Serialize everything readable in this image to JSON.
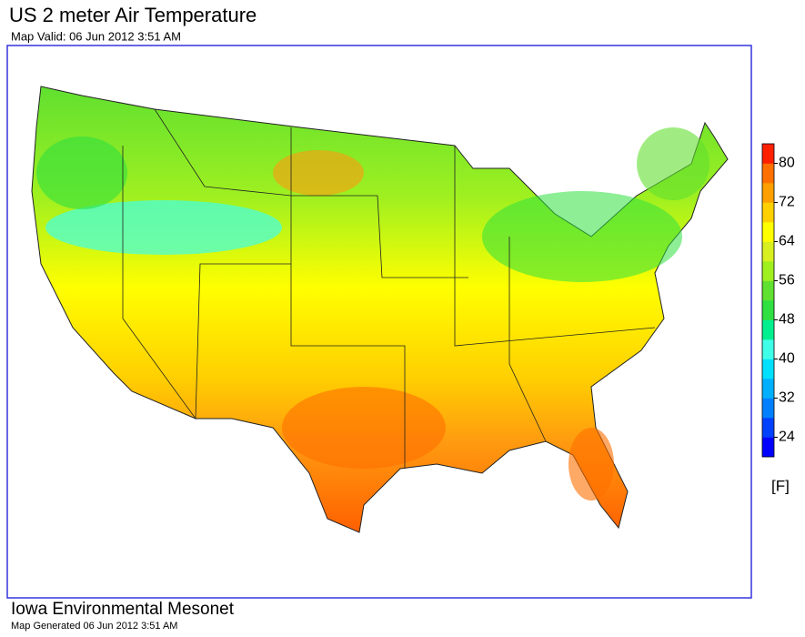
{
  "header": {
    "title": "US 2 meter Air Temperature",
    "subtitle": "Map Valid: 06 Jun 2012 3:51 AM"
  },
  "colorbar": {
    "range": [
      20,
      84
    ],
    "ticks": [
      24,
      32,
      40,
      48,
      56,
      64,
      72,
      80
    ],
    "colors": [
      "#0000ff",
      "#0040ff",
      "#0080ff",
      "#00b0ff",
      "#00e0ff",
      "#40ffe8",
      "#00f090",
      "#30e040",
      "#60e030",
      "#a0f020",
      "#d8f020",
      "#ffff00",
      "#ffd000",
      "#ffa000",
      "#ff7000",
      "#ff2000"
    ],
    "unit": "[F]"
  },
  "footer": {
    "source": "Iowa Environmental Mesonet",
    "generated": "Map Generated 06 Jun 2012 3:51 AM"
  }
}
